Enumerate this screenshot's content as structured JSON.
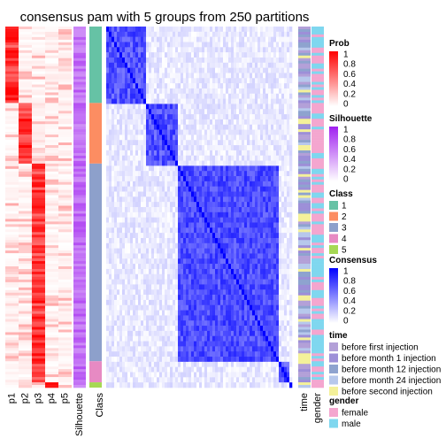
{
  "chart_data": {
    "type": "heatmap",
    "title": "consensus pam with 5 groups from 250 partitions",
    "row_order_note": null,
    "prob_columns": [
      "p1",
      "p2",
      "p3",
      "p4",
      "p5"
    ],
    "extra_columns": {
      "left": [
        "Silhouette",
        "Class"
      ],
      "right": [
        "time",
        "gender"
      ]
    },
    "class_sizes": [
      {
        "class": "1",
        "rows": 29
      },
      {
        "class": "2",
        "rows": 23
      },
      {
        "class": "3",
        "rows": 75
      },
      {
        "class": "4",
        "rows": 8
      },
      {
        "class": "5",
        "rows": 2
      }
    ],
    "legends": {
      "prob": {
        "title": "Prob",
        "ticks": [
          "1",
          "0.8",
          "0.6",
          "0.4",
          "0.2",
          "0"
        ],
        "colors": [
          "#ff0000",
          "#ffffff"
        ]
      },
      "silhouette": {
        "title": "Silhouette",
        "ticks": [
          "1",
          "0.8",
          "0.6",
          "0.4",
          "0.2",
          "0"
        ],
        "colors": [
          "#a020f0",
          "#ffffff"
        ]
      },
      "class": {
        "title": "Class",
        "items": [
          {
            "label": "1",
            "color": "#66c2a5"
          },
          {
            "label": "2",
            "color": "#fc8d62"
          },
          {
            "label": "3",
            "color": "#8da0cb"
          },
          {
            "label": "4",
            "color": "#e78ac3"
          },
          {
            "label": "5",
            "color": "#a6d854"
          }
        ]
      },
      "consensus": {
        "title": "Consensus",
        "ticks": [
          "1",
          "0.8",
          "0.6",
          "0.4",
          "0.2",
          "0"
        ],
        "colors": [
          "#0000ff",
          "#ffffff"
        ]
      },
      "time": {
        "title": "time",
        "items": [
          {
            "label": "before first injection",
            "color": "#b3a0d8"
          },
          {
            "label": "before month 1 injection",
            "color": "#9d8fd8"
          },
          {
            "label": "before month 12 injection",
            "color": "#8ea3cf"
          },
          {
            "label": "before month 24 injection",
            "color": "#b7c8ec"
          },
          {
            "label": "before second injection",
            "color": "#f4f19a"
          }
        ]
      },
      "gender": {
        "title": "gender",
        "items": [
          {
            "label": "female",
            "color": "#f4a6cf"
          },
          {
            "label": "male",
            "color": "#7fd7ef"
          }
        ]
      }
    }
  }
}
